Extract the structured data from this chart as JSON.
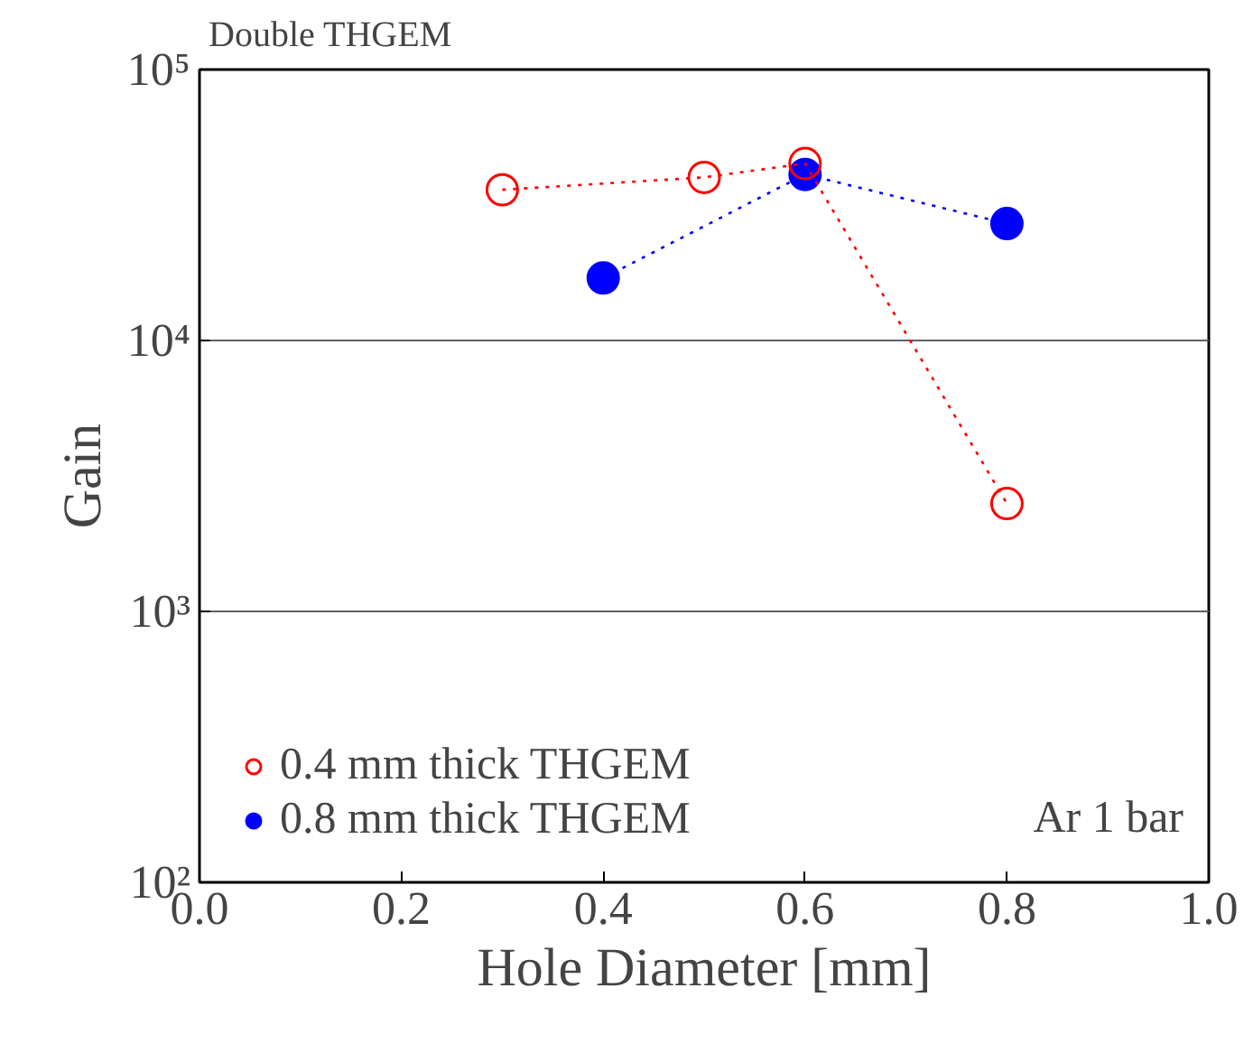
{
  "chart_data": {
    "type": "line",
    "xlabel": "Hole Diameter [mm]",
    "ylabel": "Gain",
    "annotations": [
      "Double THGEM",
      "Ar 1 bar"
    ],
    "log": "y",
    "grid": "y",
    "legend": "bottom left",
    "marker": "circle",
    "line_style": "dotted",
    "xlim": [
      0,
      1
    ],
    "xticks": [
      {
        "value": 0,
        "label": "0.0"
      },
      {
        "value": 0.2,
        "label": "0.2"
      },
      {
        "value": 0.4,
        "label": "0.4"
      },
      {
        "value": 0.6,
        "label": "0.6"
      },
      {
        "value": 0.8,
        "label": "0.8"
      },
      {
        "value": 1,
        "label": "1.0"
      }
    ],
    "ylim": [
      100,
      100000
    ],
    "yticks": [
      {
        "value": 100,
        "label": "10²"
      },
      {
        "value": 1000,
        "label": "10³"
      },
      {
        "value": 10000,
        "label": "10⁴"
      },
      {
        "value": 100000,
        "label": "10⁵"
      }
    ],
    "series": [
      {
        "name": "0.4 mm thick THGEM",
        "color": "#ff0000",
        "x": [
          0.3,
          0.5,
          0.6,
          0.8
        ],
        "values": [
          36000,
          40000,
          45000,
          2500
        ]
      },
      {
        "name": "0.8 mm thick THGEM",
        "color": "#0000ff",
        "x": [
          0.4,
          0.6,
          0.8
        ],
        "values": [
          17000,
          41000,
          27000
        ]
      }
    ]
  }
}
